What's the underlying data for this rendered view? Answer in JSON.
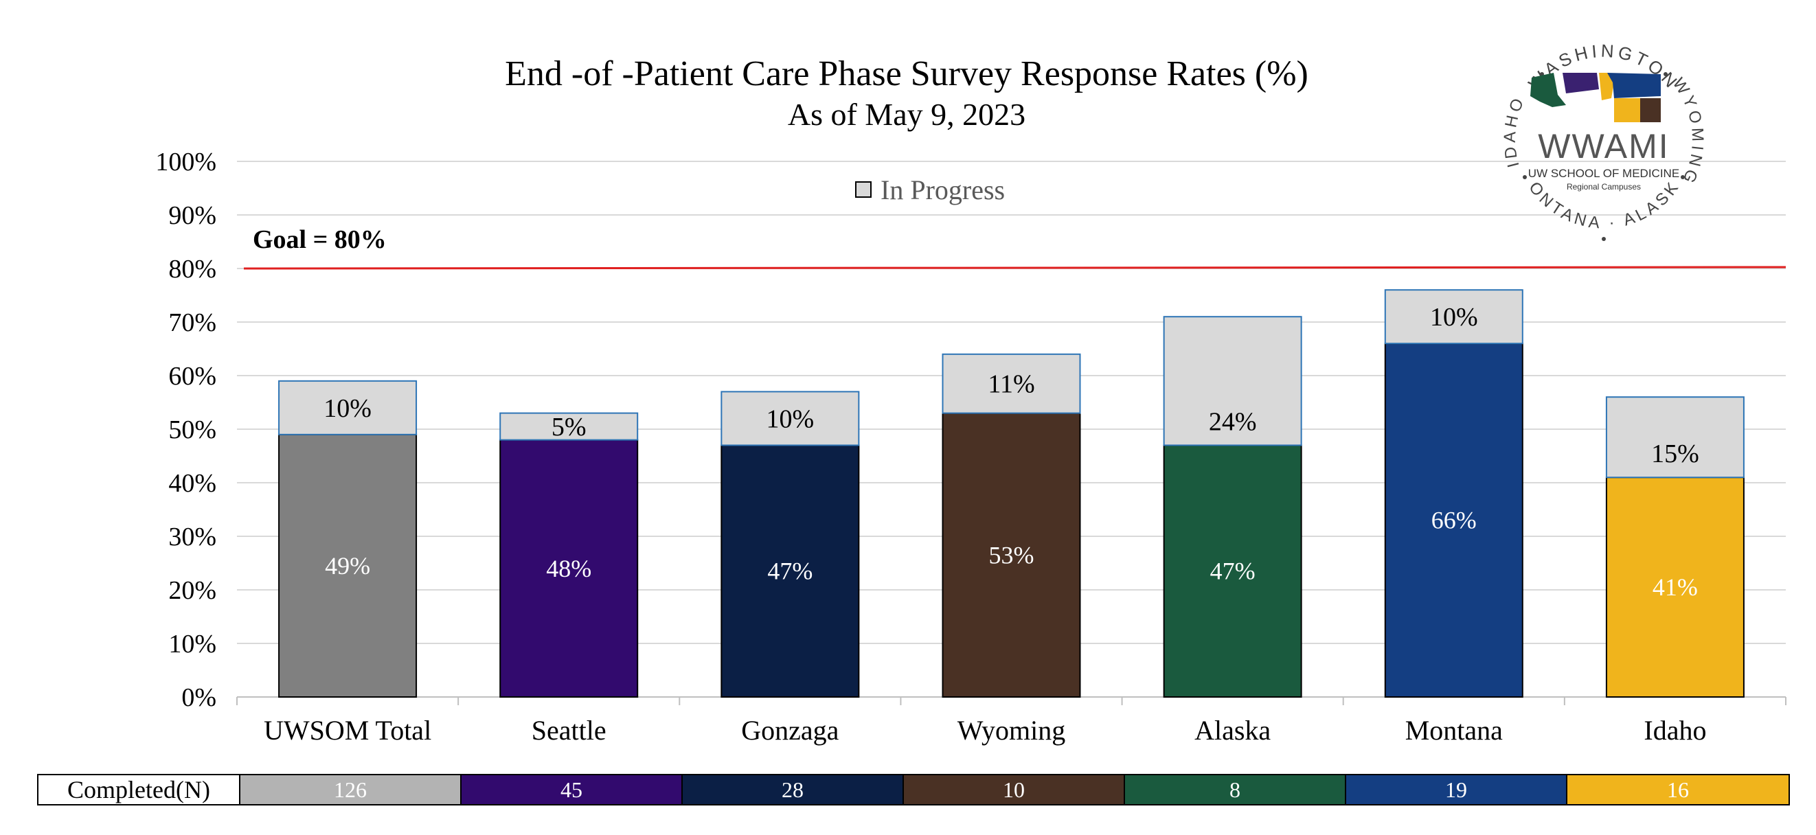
{
  "chart_data": {
    "type": "bar",
    "stacked": true,
    "title": "End -of -Patient Care Phase Survey Response Rates (%)",
    "subtitle": "As of May 9, 2023",
    "categories": [
      "UWSOM Total",
      "Seattle",
      "Gonzaga",
      "Wyoming",
      "Alaska",
      "Montana",
      "Idaho"
    ],
    "series": [
      {
        "name": "",
        "values": [
          49,
          48,
          47,
          53,
          47,
          66,
          41
        ],
        "labels": [
          "49%",
          "48%",
          "47%",
          "53%",
          "47%",
          "66%",
          "41%"
        ],
        "colors": [
          "#808080",
          "#320a6e",
          "#0b1f45",
          "#4a3124",
          "#1a5a3e",
          "#143e82",
          "#f0b41c"
        ]
      },
      {
        "name": "In Progress",
        "values": [
          10,
          5,
          10,
          11,
          24,
          10,
          15
        ],
        "labels": [
          "10%",
          "5%",
          "10%",
          "11%",
          "24%",
          "10%",
          "15%"
        ],
        "color": "#d9d9d9"
      }
    ],
    "ylim": [
      0,
      100
    ],
    "yticks": [
      "0%",
      "10%",
      "20%",
      "30%",
      "40%",
      "50%",
      "60%",
      "70%",
      "80%",
      "90%",
      "100%"
    ],
    "ytick_values": [
      0,
      10,
      20,
      30,
      40,
      50,
      60,
      70,
      80,
      90,
      100
    ],
    "goal": {
      "value": 80,
      "label": "Goal = 80%",
      "color": "#e02020"
    },
    "grid": true,
    "legend_placement": "top-center",
    "completed": {
      "label": "Completed(N)",
      "values": [
        "126",
        "45",
        "28",
        "10",
        "8",
        "19",
        "16"
      ],
      "colors": [
        "#b3b3b3",
        "#320a6e",
        "#0b1f45",
        "#4a3124",
        "#1a5a3e",
        "#143e82",
        "#f0b41c"
      ]
    }
  },
  "logo": {
    "arc_top": "WASHINGTON",
    "arc_left": "IDAHO",
    "arc_right": "WYOMING",
    "arc_bottom": "MONTANA · ALASKA",
    "name": "WWAMI",
    "line1": "UW SCHOOL OF MEDICINE",
    "line2": "Regional Campuses"
  }
}
